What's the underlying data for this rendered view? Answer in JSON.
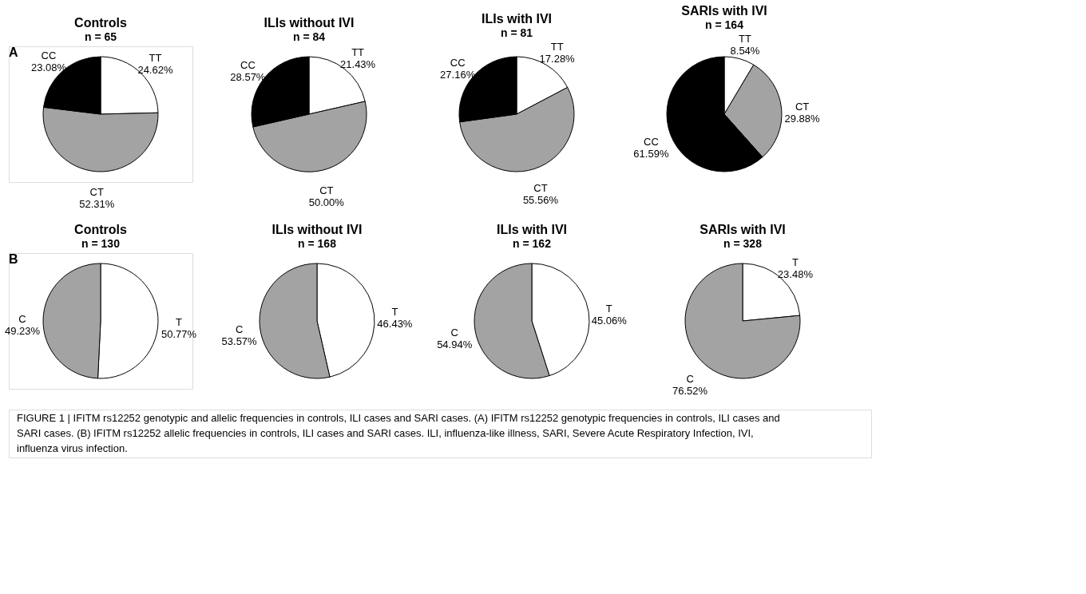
{
  "chart_data": [
    {
      "type": "pie",
      "title": "Controls",
      "subtitle": "n = 65",
      "categories": [
        "TT",
        "CT",
        "CC"
      ],
      "values": [
        24.62,
        52.31,
        23.08
      ],
      "value_labels": [
        "24.62%",
        "52.31%",
        "23.08%"
      ],
      "colors": [
        "#ffffff",
        "#a3a3a3",
        "#000000"
      ],
      "annotations": [
        "A"
      ]
    },
    {
      "type": "pie",
      "title": "ILIs without IVI",
      "subtitle": "n = 84",
      "categories": [
        "TT",
        "CT",
        "CC"
      ],
      "values": [
        21.43,
        50.0,
        28.57
      ],
      "value_labels": [
        "21.43%",
        "50.00%",
        "28.57%"
      ],
      "colors": [
        "#ffffff",
        "#a3a3a3",
        "#000000"
      ]
    },
    {
      "type": "pie",
      "title": "ILIs with IVI",
      "subtitle": "n = 81",
      "categories": [
        "TT",
        "CT",
        "CC"
      ],
      "values": [
        17.28,
        55.56,
        27.16
      ],
      "value_labels": [
        "17.28%",
        "55.56%",
        "27.16%"
      ],
      "colors": [
        "#ffffff",
        "#a3a3a3",
        "#000000"
      ]
    },
    {
      "type": "pie",
      "title": "SARIs with IVI",
      "subtitle": "n = 164",
      "categories": [
        "TT",
        "CT",
        "CC"
      ],
      "values": [
        8.54,
        29.88,
        61.59
      ],
      "value_labels": [
        "8.54%",
        "29.88%",
        "61.59%"
      ],
      "colors": [
        "#ffffff",
        "#a3a3a3",
        "#000000"
      ]
    },
    {
      "type": "pie",
      "title": "Controls",
      "subtitle": "n = 130",
      "categories": [
        "T",
        "C"
      ],
      "values": [
        50.77,
        49.23
      ],
      "value_labels": [
        "50.77%",
        "49.23%"
      ],
      "colors": [
        "#ffffff",
        "#a3a3a3"
      ],
      "annotations": [
        "B"
      ]
    },
    {
      "type": "pie",
      "title": "ILIs without IVI",
      "subtitle": "n = 168",
      "categories": [
        "T",
        "C"
      ],
      "values": [
        46.43,
        53.57
      ],
      "value_labels": [
        "46.43%",
        "53.57%"
      ],
      "colors": [
        "#ffffff",
        "#a3a3a3"
      ]
    },
    {
      "type": "pie",
      "title": "ILIs with IVI",
      "subtitle": "n = 162",
      "categories": [
        "T",
        "C"
      ],
      "values": [
        45.06,
        54.94
      ],
      "value_labels": [
        "45.06%",
        "54.94%"
      ],
      "colors": [
        "#ffffff",
        "#a3a3a3"
      ]
    },
    {
      "type": "pie",
      "title": "SARIs with IVI",
      "subtitle": "n = 328",
      "categories": [
        "T",
        "C"
      ],
      "values": [
        23.48,
        76.52
      ],
      "value_labels": [
        "23.48%",
        "76.52%"
      ],
      "colors": [
        "#ffffff",
        "#a3a3a3"
      ],
      "annotations": [
        "FIGURE 1 | IFITM rs12252 genotypic and allelic frequencies in controls, ILI cases and SARI cases. (A) IFITM rs12252 genotypic frequencies in controls, ILI cases and SARI cases. (B) IFITM rs12252 allelic frequencies in controls, ILI cases and SARI cases. ILI, influenza-like illness, SARI, Severe Acute Respiratory Infection, IVI, influenza virus infection."
      ]
    }
  ]
}
